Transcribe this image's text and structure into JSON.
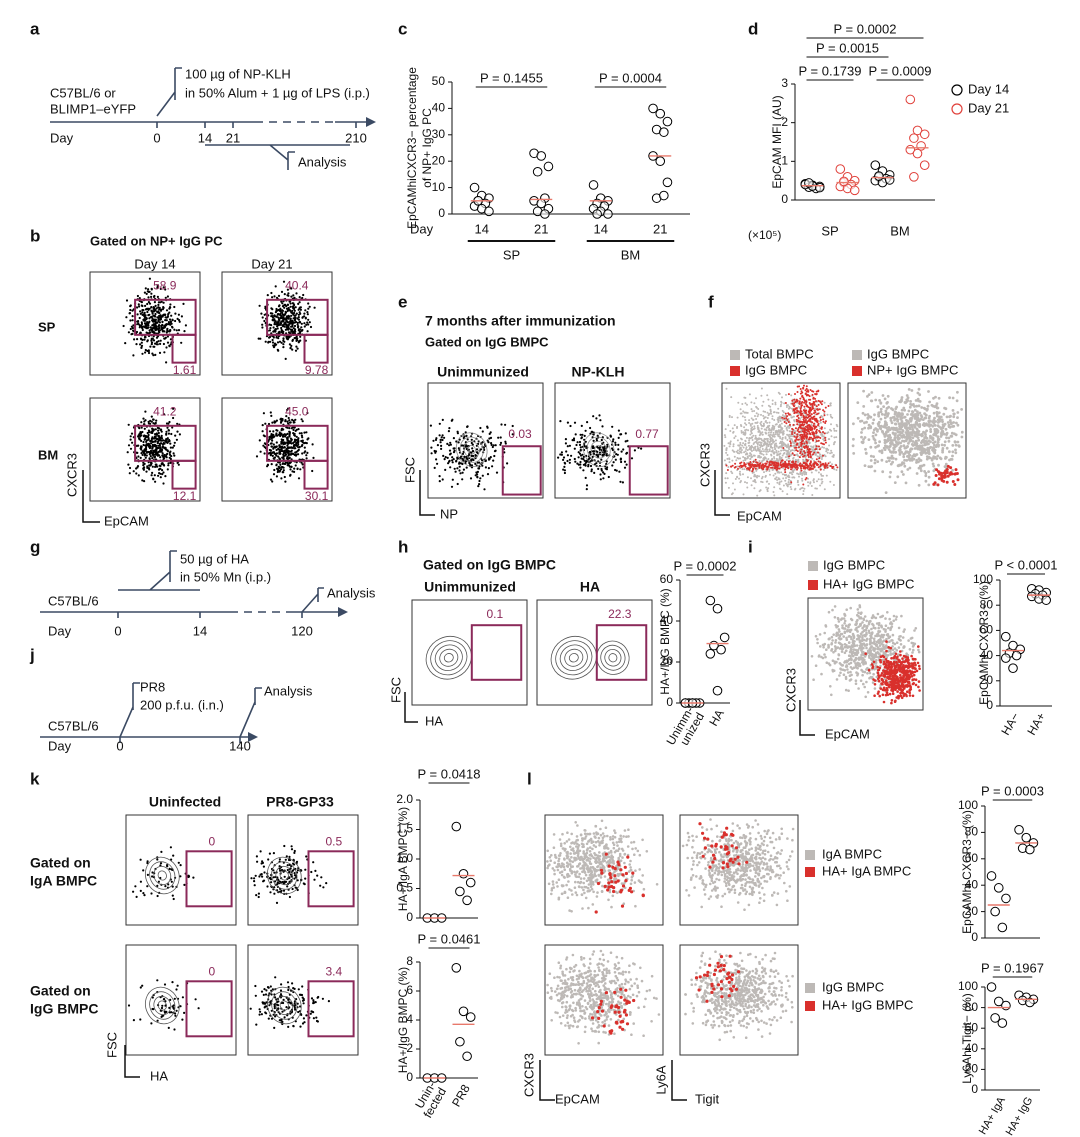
{
  "panel_labels": [
    "a",
    "b",
    "c",
    "d",
    "e",
    "f",
    "g",
    "h",
    "i",
    "j",
    "k",
    "l"
  ],
  "a": {
    "strain": [
      "C57BL/6 or",
      "BLIMP1–eYFP"
    ],
    "day": "Day",
    "days": [
      "0",
      "14",
      "21",
      "210"
    ],
    "treatment": [
      "100 µg of NP-KLH",
      "in 50% Alum + 1 µg of LPS (i.p.)"
    ],
    "analysis": "Analysis"
  },
  "b": {
    "title": "Gated on NP+ IgG PC",
    "columns": [
      "Day 14",
      "Day 21"
    ],
    "rows": [
      "SP",
      "BM"
    ],
    "gates": [
      [
        "58.9",
        "1.61"
      ],
      [
        "40.4",
        "9.78"
      ],
      [
        "41.2",
        "12.1"
      ],
      [
        "45.0",
        "30.1"
      ]
    ],
    "y_axis": "CXCR3",
    "x_axis": "EpCAM"
  },
  "e": {
    "title": "7 months after immunization",
    "subtitle": "Gated on IgG BMPC",
    "columns": [
      "Unimmunized",
      "NP-KLH"
    ],
    "gates": [
      "0.03",
      "0.77"
    ],
    "y_axis": "FSC",
    "x_axis": "NP"
  },
  "f": {
    "legends": [
      [
        "Total BMPC",
        "IgG BMPC"
      ],
      [
        "IgG BMPC",
        "NP+ IgG BMPC"
      ]
    ],
    "y_axis": "CXCR3",
    "x_axis": "EpCAM"
  },
  "g": {
    "strain": "C57BL/6",
    "day": "Day",
    "days": [
      "0",
      "14",
      "120"
    ],
    "treatment": [
      "50 µg of HA",
      "in 50% Mn (i.p.)"
    ],
    "analysis": "Analysis"
  },
  "h": {
    "title": "Gated on IgG BMPC",
    "columns": [
      "Unimmunized",
      "HA"
    ],
    "gates": [
      "0.1",
      "22.3"
    ],
    "y_axis": "FSC",
    "x_axis": "HA"
  },
  "i": {
    "legend": [
      "IgG BMPC",
      "HA+ IgG BMPC"
    ],
    "y_axis": "CXCR3",
    "x_axis": "EpCAM"
  },
  "j": {
    "strain": "C57BL/6",
    "day": "Day",
    "days": [
      "0",
      "140"
    ],
    "treatment": [
      "PR8",
      "200 p.f.u. (i.n.)"
    ],
    "analysis": "Analysis"
  },
  "k": {
    "columns": [
      "Uninfected",
      "PR8-GP33"
    ],
    "rows": [
      [
        "Gated on",
        "IgA BMPC"
      ],
      [
        "Gated on",
        "IgG BMPC"
      ]
    ],
    "gates": [
      "0",
      "0.5",
      "0",
      "3.4"
    ],
    "y_axis": "FSC",
    "x_axis": "HA"
  },
  "l": {
    "legends": [
      [
        "IgA BMPC",
        "HA+ IgA BMPC"
      ],
      [
        "IgG BMPC",
        "HA+ IgG BMPC"
      ]
    ],
    "axes": [
      "CXCR3",
      "EpCAM",
      "Ly6A",
      "Tigit"
    ]
  },
  "chart_data": [
    {
      "type": "strip",
      "y_label": [
        "EpCAMhiCXCR3− percentage",
        "of NP+ IgG PC"
      ],
      "x_label": "Day",
      "categories": [
        "14",
        "21",
        "14",
        "21"
      ],
      "groups": [
        "SP",
        "BM"
      ],
      "ylim": [
        0,
        50
      ],
      "yticks": [
        0,
        10,
        20,
        30,
        40,
        50
      ],
      "median_color": "#e8796b",
      "series": [
        {
          "color": "#000000",
          "values": [
            [
              10,
              7,
              6,
              5,
              4,
              3,
              2,
              1,
              5
            ],
            [
              23,
              22,
              18,
              16,
              6,
              5,
              4,
              2,
              1,
              0
            ],
            [
              11,
              6,
              5,
              4,
              3,
              2,
              1,
              0,
              0
            ],
            [
              40,
              38,
              35,
              32,
              31,
              22,
              20,
              12,
              6,
              7
            ]
          ],
          "medians": [
            5,
            5.5,
            5,
            22
          ]
        }
      ],
      "annotations": [
        "P = 0.1455",
        "P = 0.0004"
      ]
    },
    {
      "type": "strip",
      "y_label": [
        "EpCAM MFI (AU)"
      ],
      "multiplier": "(×10⁵)",
      "categories": [
        "SP",
        "BM"
      ],
      "ylim": [
        0,
        3
      ],
      "yticks": [
        0,
        1,
        2,
        3
      ],
      "median_color": "#e8796b",
      "series": [
        {
          "name": "Day 14",
          "color": "#000000",
          "values": [
            [
              0.42,
              0.38,
              0.35,
              0.33,
              0.3,
              0.4,
              0.36,
              0.32,
              0.44
            ],
            [
              0.9,
              0.75,
              0.65,
              0.6,
              0.55,
              0.5,
              0.45,
              0.52,
              0.62
            ]
          ],
          "medians": [
            0.37,
            0.58
          ]
        },
        {
          "name": "Day 21",
          "color": "#e0403a",
          "values": [
            [
              0.8,
              0.6,
              0.5,
              0.45,
              0.4,
              0.35,
              0.3,
              0.25,
              0.48
            ],
            [
              2.6,
              1.8,
              1.7,
              1.6,
              1.4,
              1.3,
              1.2,
              0.9,
              0.6
            ]
          ],
          "medians": [
            0.45,
            1.35
          ]
        }
      ],
      "annotations": [
        "P = 0.1739",
        "P = 0.0015",
        "P = 0.0002",
        "P = 0.0009"
      ]
    },
    {
      "type": "strip",
      "y_label": [
        "HA+/IgG BMPC (%)"
      ],
      "categories": [
        [
          "Unimm-",
          "unized"
        ],
        [
          "HA"
        ]
      ],
      "ylim": [
        0,
        60
      ],
      "yticks": [
        0,
        20,
        40,
        60
      ],
      "median_color": "#e8796b",
      "series": [
        {
          "color": "#000000",
          "values": [
            [
              0,
              0,
              0,
              0,
              0,
              0,
              0
            ],
            [
              50,
              46,
              32,
              28,
              26,
              24,
              6
            ]
          ],
          "medians": [
            0,
            29
          ]
        }
      ],
      "annotations": [
        "P = 0.0002"
      ]
    },
    {
      "type": "strip",
      "y_label": [
        "EpCAMhi CXCR3− (%)"
      ],
      "categories": [
        "HA−",
        "HA+"
      ],
      "ylim": [
        0,
        100
      ],
      "yticks": [
        0,
        20,
        40,
        60,
        80,
        100
      ],
      "median_color": "#e8796b",
      "series": [
        {
          "color": "#000000",
          "values": [
            [
              55,
              48,
              45,
              42,
              40,
              38,
              30
            ],
            [
              93,
              92,
              90,
              89,
              88,
              87,
              85,
              84
            ]
          ],
          "medians": [
            44,
            88
          ]
        }
      ],
      "annotations": [
        "P < 0.0001"
      ]
    },
    {
      "type": "strip",
      "y_label": [
        "HA+/IgA BMPC (%)"
      ],
      "ylim": [
        0,
        2
      ],
      "yticks": [
        0,
        0.5,
        {
          "value": 1,
          "label": "1.0"
        },
        1.5,
        {
          "value": 2,
          "label": "2.0"
        }
      ],
      "median_color": "#e8796b",
      "series": [
        {
          "color": "#000000",
          "values": [
            [
              0,
              0,
              0
            ],
            [
              1.55,
              0.75,
              0.6,
              0.45,
              0.3
            ]
          ],
          "medians": [
            0,
            0.72
          ]
        }
      ],
      "annotations": [
        "P = 0.0418"
      ]
    },
    {
      "type": "strip",
      "y_label": [
        "HA+/IgG BMPC (%)"
      ],
      "categories": [
        [
          "Unin-",
          "fected"
        ],
        [
          "PR8"
        ]
      ],
      "ylim": [
        0,
        8
      ],
      "yticks": [
        0,
        2,
        4,
        6,
        8
      ],
      "median_color": "#e8796b",
      "series": [
        {
          "color": "#000000",
          "values": [
            [
              0,
              0,
              0
            ],
            [
              7.6,
              4.6,
              4.2,
              2.5,
              1.5
            ]
          ],
          "medians": [
            0,
            3.7
          ]
        }
      ],
      "annotations": [
        "P = 0.0461"
      ]
    },
    {
      "type": "strip",
      "y_label": [
        "EpCAMhi CXCR3− (%)"
      ],
      "ylim": [
        0,
        100
      ],
      "yticks": [
        0,
        20,
        40,
        60,
        80,
        100
      ],
      "median_color": "#e8796b",
      "series": [
        {
          "color": "#000000",
          "values": [
            [
              47,
              38,
              30,
              20,
              8
            ],
            [
              82,
              76,
              72,
              68,
              67
            ]
          ],
          "medians": [
            25,
            72
          ]
        }
      ],
      "annotations": [
        "P = 0.0003"
      ]
    },
    {
      "type": "strip",
      "y_label": [
        "Ly6Ahi Tigit− (%)"
      ],
      "categories": [
        "HA+ IgA",
        "HA+ IgG"
      ],
      "ylim": [
        0,
        100
      ],
      "yticks": [
        0,
        20,
        40,
        60,
        80,
        100
      ],
      "median_color": "#e8796b",
      "series": [
        {
          "color": "#000000",
          "values": [
            [
              100,
              86,
              82,
              70,
              65
            ],
            [
              92,
              90,
              88,
              87,
              85
            ]
          ],
          "medians": [
            80,
            88
          ]
        }
      ],
      "annotations": [
        "P = 0.1967"
      ]
    }
  ]
}
